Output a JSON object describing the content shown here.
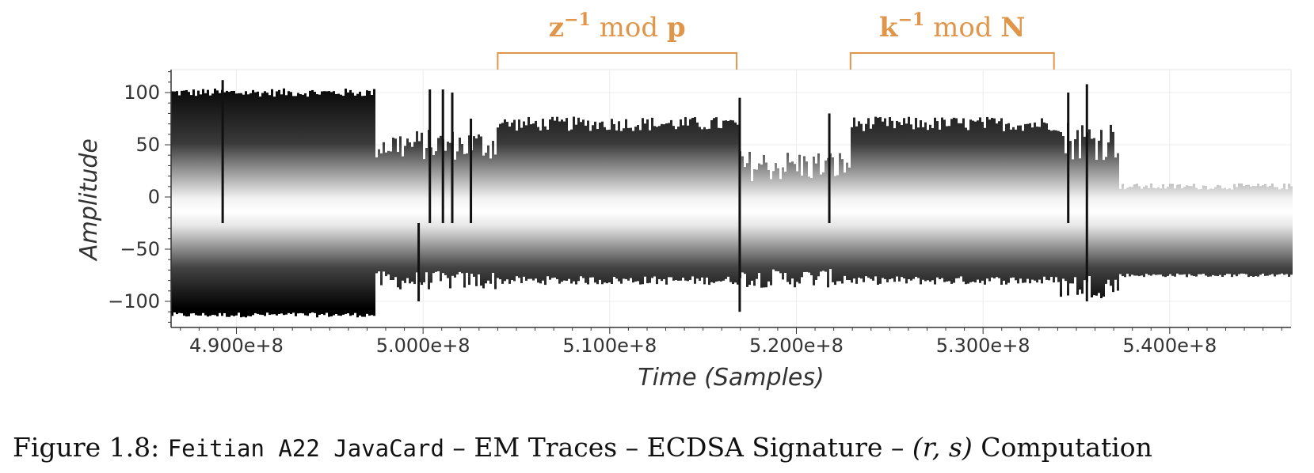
{
  "chart_data": {
    "type": "area",
    "xlabel": "Time (Samples)",
    "ylabel": "Amplitude",
    "xlim": [
      486500000,
      546500000
    ],
    "ylim": [
      -125,
      122
    ],
    "x_ticks": [
      490000000,
      500000000,
      510000000,
      520000000,
      530000000,
      540000000
    ],
    "x_tick_labels": [
      "4.900e+8",
      "5.000e+8",
      "5.100e+8",
      "5.200e+8",
      "5.300e+8",
      "5.400e+8"
    ],
    "y_ticks": [
      100,
      50,
      0,
      -50,
      -100
    ],
    "y_tick_labels": [
      "100",
      "50",
      "0",
      "−50",
      "−100"
    ],
    "grid": true,
    "center_level": -25,
    "segments": [
      {
        "x_start": 486500000,
        "x_end": 497400000,
        "upper": 100,
        "lower": -113,
        "noise": 4
      },
      {
        "x_start": 497400000,
        "x_end": 503900000,
        "upper": 50,
        "lower": -80,
        "noise": 15
      },
      {
        "x_start": 503900000,
        "x_end": 516900000,
        "upper": 70,
        "lower": -80,
        "noise": 7
      },
      {
        "x_start": 516900000,
        "x_end": 522900000,
        "upper": 30,
        "lower": -78,
        "noise": 15
      },
      {
        "x_start": 522900000,
        "x_end": 534000000,
        "upper": 70,
        "lower": -80,
        "noise": 7
      },
      {
        "x_start": 534000000,
        "x_end": 537200000,
        "upper": 55,
        "lower": -85,
        "noise": 20
      },
      {
        "x_start": 537200000,
        "x_end": 546500000,
        "upper": 10,
        "lower": -75,
        "noise": 3
      }
    ],
    "spikes": [
      {
        "x": 500300000,
        "y": 103
      },
      {
        "x": 501000000,
        "y": 103
      },
      {
        "x": 501500000,
        "y": 100
      },
      {
        "x": 502500000,
        "y": 75
      },
      {
        "x": 516900000,
        "y": 95
      },
      {
        "x": 516900000,
        "y": -110
      },
      {
        "x": 521700000,
        "y": 80
      },
      {
        "x": 534500000,
        "y": 100
      },
      {
        "x": 535500000,
        "y": 108
      },
      {
        "x": 535500000,
        "y": -100
      },
      {
        "x": 489200000,
        "y": 112
      },
      {
        "x": 499700000,
        "y": -100
      }
    ],
    "annotations": [
      {
        "x_start": 504000000,
        "x_end": 516800000,
        "text_main": "z",
        "text_sup": "−1",
        "text_mod": " mod ",
        "text_var": "p"
      },
      {
        "x_start": 522900000,
        "x_end": 533800000,
        "text_main": "k",
        "text_sup": "−1",
        "text_mod": " mod ",
        "text_var": "N"
      }
    ],
    "annotation_color": "#e0964a"
  },
  "caption": {
    "prefix": "Figure 1.8: ",
    "device": "Feitian A22 JavaCard",
    "sep1": " – EM Traces – ECDSA Signature – ",
    "math": "(r, s)",
    "suffix": " Computation"
  }
}
